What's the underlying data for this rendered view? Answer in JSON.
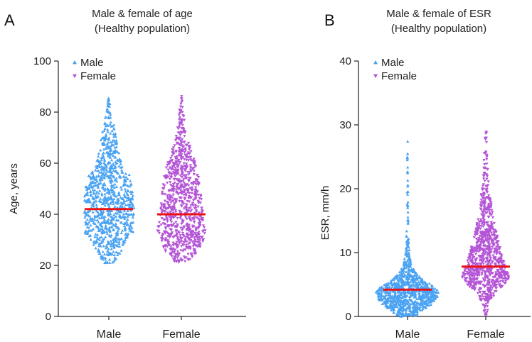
{
  "colors": {
    "male": "#4aa3f2",
    "female": "#b455d6",
    "median": "#ee1111",
    "axis": "#222222"
  },
  "chart_data": [
    {
      "panel": "A",
      "type": "scatter",
      "subtype": "beeswarm",
      "title_line1": "Male & female of age",
      "title_line2": "(Healthy population)",
      "xlabel": "",
      "ylabel": "Age, years",
      "categories": [
        "Male",
        "Female"
      ],
      "ylim": [
        0,
        100
      ],
      "yticks": [
        0,
        20,
        40,
        60,
        80,
        100
      ],
      "legend": {
        "position": "top-left",
        "entries": [
          {
            "name": "Male",
            "marker": "triangle-up"
          },
          {
            "name": "Female",
            "marker": "triangle-down"
          }
        ]
      },
      "series": [
        {
          "name": "Male",
          "marker": "triangle-up",
          "median": 42,
          "min": 21,
          "max": 86,
          "density": [
            [
              21,
              0.2
            ],
            [
              25,
              0.45
            ],
            [
              30,
              0.7
            ],
            [
              33,
              0.95
            ],
            [
              40,
              1.0
            ],
            [
              48,
              0.95
            ],
            [
              55,
              0.85
            ],
            [
              58,
              0.55
            ],
            [
              62,
              0.45
            ],
            [
              66,
              0.35
            ],
            [
              70,
              0.3
            ],
            [
              74,
              0.22
            ],
            [
              78,
              0.14
            ],
            [
              82,
              0.08
            ],
            [
              86,
              0.03
            ]
          ]
        },
        {
          "name": "Female",
          "marker": "triangle-down",
          "median": 40,
          "min": 21,
          "max": 88,
          "density": [
            [
              21,
              0.25
            ],
            [
              25,
              0.6
            ],
            [
              30,
              0.9
            ],
            [
              33,
              0.95
            ],
            [
              38,
              0.85
            ],
            [
              45,
              0.8
            ],
            [
              52,
              0.75
            ],
            [
              58,
              0.6
            ],
            [
              63,
              0.45
            ],
            [
              67,
              0.35
            ],
            [
              71,
              0.22
            ],
            [
              75,
              0.14
            ],
            [
              80,
              0.08
            ],
            [
              84,
              0.04
            ],
            [
              88,
              0.02
            ]
          ]
        }
      ]
    },
    {
      "panel": "B",
      "type": "scatter",
      "subtype": "beeswarm",
      "title_line1": "Male & female of ESR",
      "title_line2": "(Healthy population)",
      "xlabel": "",
      "ylabel": "ESR, mm/h",
      "categories": [
        "Male",
        "Female"
      ],
      "ylim": [
        0,
        40
      ],
      "yticks": [
        0,
        10,
        20,
        30,
        40
      ],
      "legend": {
        "position": "top-left",
        "entries": [
          {
            "name": "Male",
            "marker": "triangle-up"
          },
          {
            "name": "Female",
            "marker": "triangle-down"
          }
        ]
      },
      "series": [
        {
          "name": "Male",
          "marker": "triangle-up",
          "median": 4.2,
          "min": 0,
          "max": 28,
          "density": [
            [
              0,
              0.25
            ],
            [
              1,
              0.55
            ],
            [
              2,
              0.8
            ],
            [
              3,
              0.95
            ],
            [
              4,
              1.0
            ],
            [
              5,
              0.75
            ],
            [
              6,
              0.45
            ],
            [
              7,
              0.25
            ],
            [
              8,
              0.14
            ],
            [
              10,
              0.06
            ],
            [
              13,
              0.035
            ],
            [
              18,
              0.02
            ],
            [
              23,
              0.01
            ],
            [
              28,
              0.005
            ]
          ]
        },
        {
          "name": "Female",
          "marker": "triangle-down",
          "median": 7.8,
          "min": 0,
          "max": 29,
          "density": [
            [
              0,
              0.02
            ],
            [
              2,
              0.1
            ],
            [
              4,
              0.35
            ],
            [
              5,
              0.6
            ],
            [
              6,
              0.75
            ],
            [
              7,
              0.7
            ],
            [
              9,
              0.55
            ],
            [
              11,
              0.45
            ],
            [
              13,
              0.35
            ],
            [
              15,
              0.25
            ],
            [
              18,
              0.17
            ],
            [
              21,
              0.1
            ],
            [
              24,
              0.06
            ],
            [
              27,
              0.04
            ],
            [
              29,
              0.03
            ]
          ]
        }
      ]
    }
  ]
}
